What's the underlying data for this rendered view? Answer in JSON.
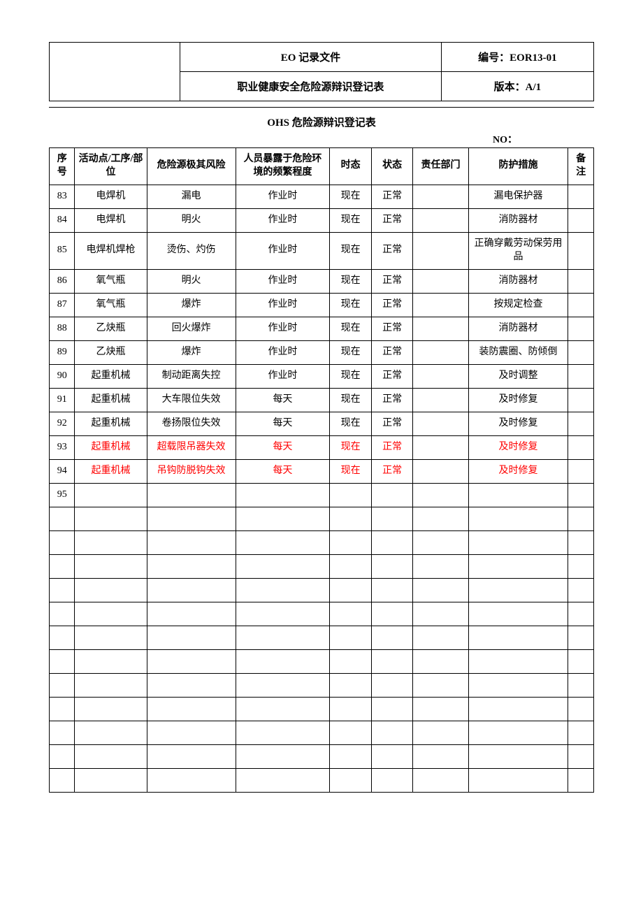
{
  "header": {
    "doc_type": "EO 记录文件",
    "doc_code": "编号：EOR13-01",
    "doc_title": "职业健康安全危险源辩识登记表",
    "doc_version": "版本：A/1"
  },
  "title": "OHS 危险源辩识登记表",
  "no_label": "NO：",
  "columns": {
    "seq": "序号",
    "activity": "活动点/工序/部位",
    "hazard": "危险源极其风险",
    "frequency": "人员暴露于危险环境的频繁程度",
    "tense": "时态",
    "state": "状态",
    "dept": "责任部门",
    "measure": "防护措施",
    "note": "备注"
  },
  "rows": [
    {
      "seq": "83",
      "activity": "电焊机",
      "hazard": "漏电",
      "frequency": "作业时",
      "tense": "现在",
      "state": "正常",
      "dept": "",
      "measure": "漏电保护器",
      "note": "",
      "red": false,
      "small": false
    },
    {
      "seq": "84",
      "activity": "电焊机",
      "hazard": "明火",
      "frequency": "作业时",
      "tense": "现在",
      "state": "正常",
      "dept": "",
      "measure": "消防器材",
      "note": "",
      "red": false,
      "small": false
    },
    {
      "seq": "85",
      "activity": "电焊机焊枪",
      "hazard": "烫伤、灼伤",
      "frequency": "作业时",
      "tense": "现在",
      "state": "正常",
      "dept": "",
      "measure": "正确穿戴劳动保劳用品",
      "note": "",
      "red": false,
      "small": false
    },
    {
      "seq": "86",
      "activity": "氧气瓶",
      "hazard": "明火",
      "frequency": "作业时",
      "tense": "现在",
      "state": "正常",
      "dept": "",
      "measure": "消防器材",
      "note": "",
      "red": false,
      "small": false
    },
    {
      "seq": "87",
      "activity": "氧气瓶",
      "hazard": "爆炸",
      "frequency": "作业时",
      "tense": "现在",
      "state": "正常",
      "dept": "",
      "measure": "按规定检查",
      "note": "",
      "red": false,
      "small": false
    },
    {
      "seq": "88",
      "activity": "乙炔瓶",
      "hazard": "回火爆炸",
      "frequency": "作业时",
      "tense": "现在",
      "state": "正常",
      "dept": "",
      "measure": "消防器材",
      "note": "",
      "red": false,
      "small": false
    },
    {
      "seq": "89",
      "activity": "乙炔瓶",
      "hazard": "爆炸",
      "frequency": "作业时",
      "tense": "现在",
      "state": "正常",
      "dept": "",
      "measure": "装防震圈、防倾倒",
      "note": "",
      "red": false,
      "small": true
    },
    {
      "seq": "90",
      "activity": "起重机械",
      "hazard": "制动距离失控",
      "frequency": "作业时",
      "tense": "现在",
      "state": "正常",
      "dept": "",
      "measure": "及时调整",
      "note": "",
      "red": false,
      "small": false
    },
    {
      "seq": "91",
      "activity": "起重机械",
      "hazard": "大车限位失效",
      "frequency": "每天",
      "tense": "现在",
      "state": "正常",
      "dept": "",
      "measure": "及时修复",
      "note": "",
      "red": false,
      "small": false
    },
    {
      "seq": "92",
      "activity": "起重机械",
      "hazard": "卷扬限位失效",
      "frequency": "每天",
      "tense": "现在",
      "state": "正常",
      "dept": "",
      "measure": "及时修复",
      "note": "",
      "red": false,
      "small": false
    },
    {
      "seq": "93",
      "activity": "起重机械",
      "hazard": "超载限吊器失效",
      "frequency": "每天",
      "tense": "现在",
      "state": "正常",
      "dept": "",
      "measure": "及时修复",
      "note": "",
      "red": true,
      "small": false
    },
    {
      "seq": "94",
      "activity": "起重机械",
      "hazard": "吊钩防脱钩失效",
      "frequency": "每天",
      "tense": "现在",
      "state": "正常",
      "dept": "",
      "measure": "及时修复",
      "note": "",
      "red": true,
      "small": false
    },
    {
      "seq": "95",
      "activity": "",
      "hazard": "",
      "frequency": "",
      "tense": "",
      "state": "",
      "dept": "",
      "measure": "",
      "note": "",
      "red": false,
      "small": false
    }
  ],
  "empty_rows": 12,
  "colors": {
    "text": "#000000",
    "red": "#ff0000",
    "border": "#000000",
    "background": "#ffffff"
  }
}
